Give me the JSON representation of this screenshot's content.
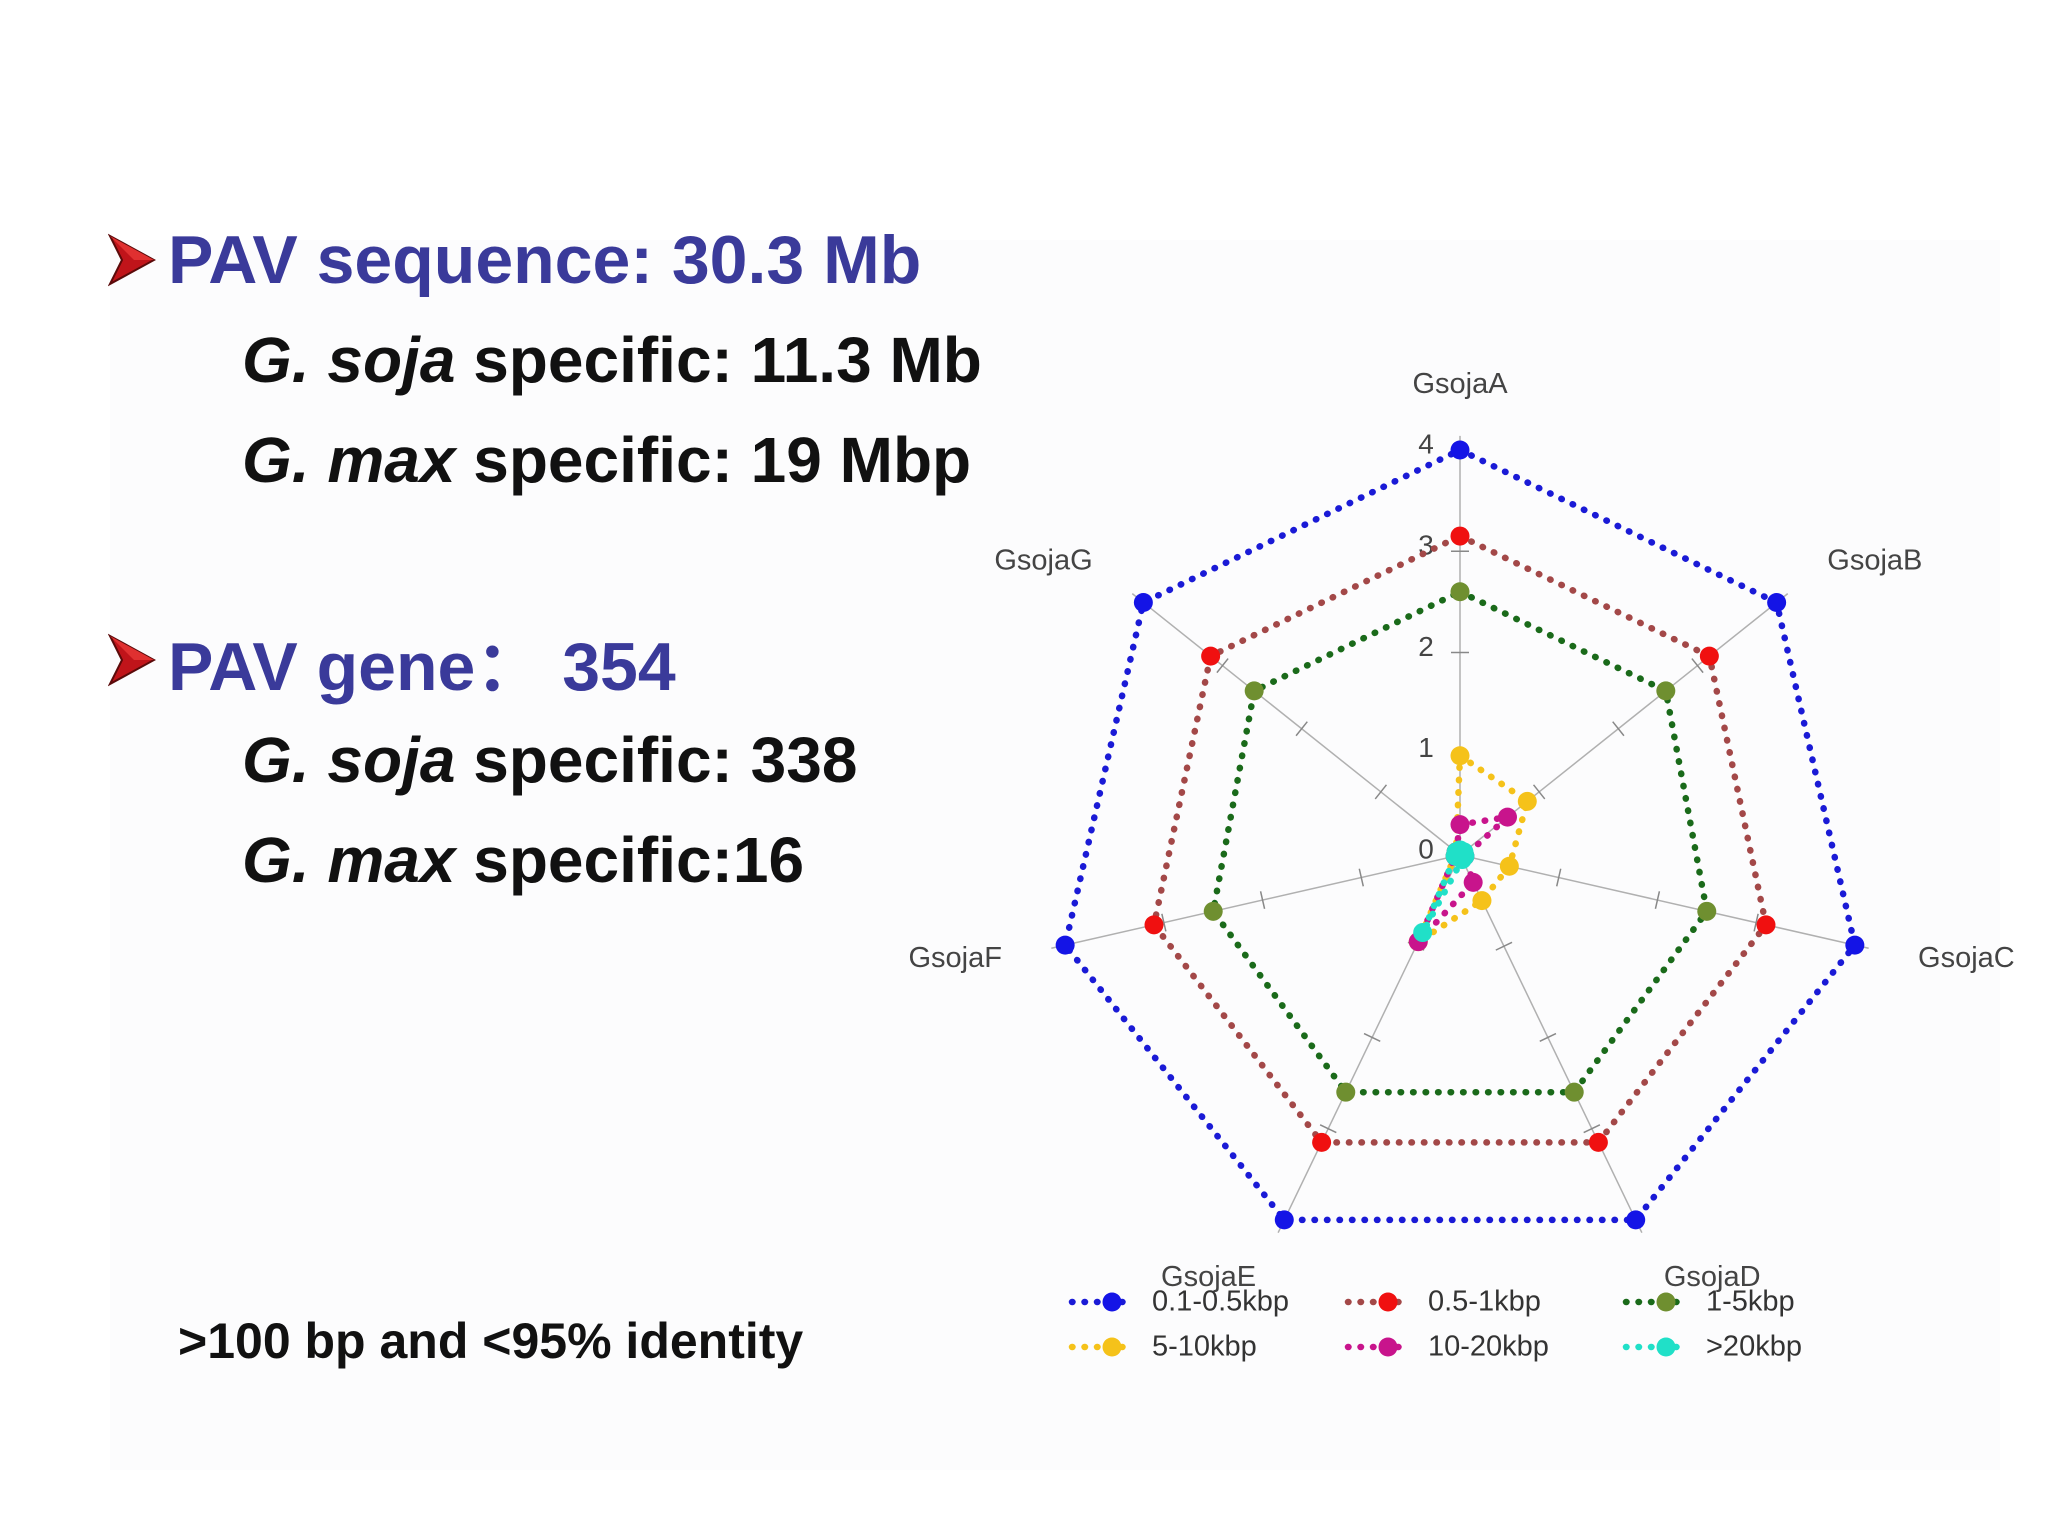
{
  "block1": {
    "heading": "PAV sequence: 30.3 Mb",
    "line1": {
      "italic_a": "G.",
      "italic_b": "soja",
      "rest": " specific: 11.3 Mb"
    },
    "line2": {
      "italic_a": "G.",
      "italic_b": "max",
      "rest": " specific: 19 Mbp"
    }
  },
  "block2": {
    "heading": "PAV gene： 354",
    "line1": {
      "italic_a": "G.",
      "italic_b": "soja",
      "rest": " specific: 338"
    },
    "line2": {
      "italic_a": "G.",
      "italic_b": "max",
      "rest": " specific:16"
    }
  },
  "footnote": ">100 bp and <95% identity",
  "colors": {
    "heading": "#3a3a9a",
    "arrow": "#c0141a",
    "axis": "#b0b0b0"
  },
  "chart_data": {
    "type": "radar",
    "axes": [
      "GsojaA",
      "GsojaB",
      "GsojaC",
      "GsojaD",
      "GsojaE",
      "GsojaF",
      "GsojaG"
    ],
    "rlim": [
      0,
      4
    ],
    "ticks": [
      "0",
      "1",
      "2",
      "3",
      "4"
    ],
    "grid": false,
    "legend_position": "bottom",
    "series": [
      {
        "name": "0.1-0.5kbp",
        "color": "#1414e6",
        "line": "#1a1ad6",
        "values": [
          4,
          4,
          4,
          4,
          4,
          4,
          4
        ]
      },
      {
        "name": "0.5-1kbp",
        "color": "#f01010",
        "line": "#a34848",
        "values": [
          3.15,
          3.15,
          3.1,
          3.15,
          3.15,
          3.1,
          3.15
        ]
      },
      {
        "name": "1-5kbp",
        "color": "#6f8f30",
        "line": "#1a6a1a",
        "values": [
          2.6,
          2.6,
          2.5,
          2.6,
          2.6,
          2.5,
          2.6
        ]
      },
      {
        "name": "5-10kbp",
        "color": "#f5c21a",
        "line": "#f5c21a",
        "values": [
          0.98,
          0.85,
          0.5,
          0.5,
          0.95,
          0.05,
          0.05
        ]
      },
      {
        "name": "10-20kbp",
        "color": "#c8148c",
        "line": "#c8148c",
        "values": [
          0.3,
          0.6,
          0.05,
          0.3,
          0.95,
          0.05,
          0.05
        ]
      },
      {
        "name": ">20kbp",
        "color": "#20e0c8",
        "line": "#20e0c8",
        "values": [
          0.05,
          0.05,
          0.05,
          0.05,
          0.85,
          0.05,
          0.05
        ]
      }
    ]
  }
}
